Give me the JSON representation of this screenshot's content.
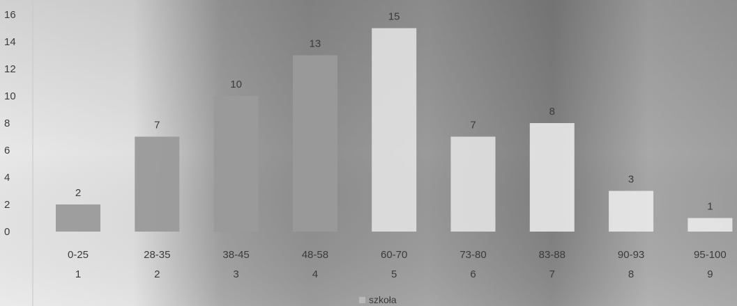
{
  "chart_data": {
    "type": "bar",
    "categories": [
      "0-25",
      "28-35",
      "38-45",
      "48-58",
      "60-70",
      "73-80",
      "83-88",
      "90-93",
      "95-100"
    ],
    "category_numbers": [
      "1",
      "2",
      "3",
      "4",
      "5",
      "6",
      "7",
      "8",
      "9"
    ],
    "series": [
      {
        "name": "szkoła",
        "values": [
          2,
          7,
          10,
          13,
          15,
          7,
          8,
          3,
          1
        ]
      }
    ],
    "y_ticks": [
      0,
      2,
      4,
      6,
      8,
      10,
      12,
      14,
      16
    ],
    "ylim": [
      0,
      16
    ],
    "grid": false,
    "legend": "bottom-center",
    "colors": {
      "bars_left": "#9a9a9a",
      "bars_middle": "#e6e6e6",
      "bars_right": "#eeeeee",
      "legend_swatch": "#b8b8b8"
    }
  }
}
